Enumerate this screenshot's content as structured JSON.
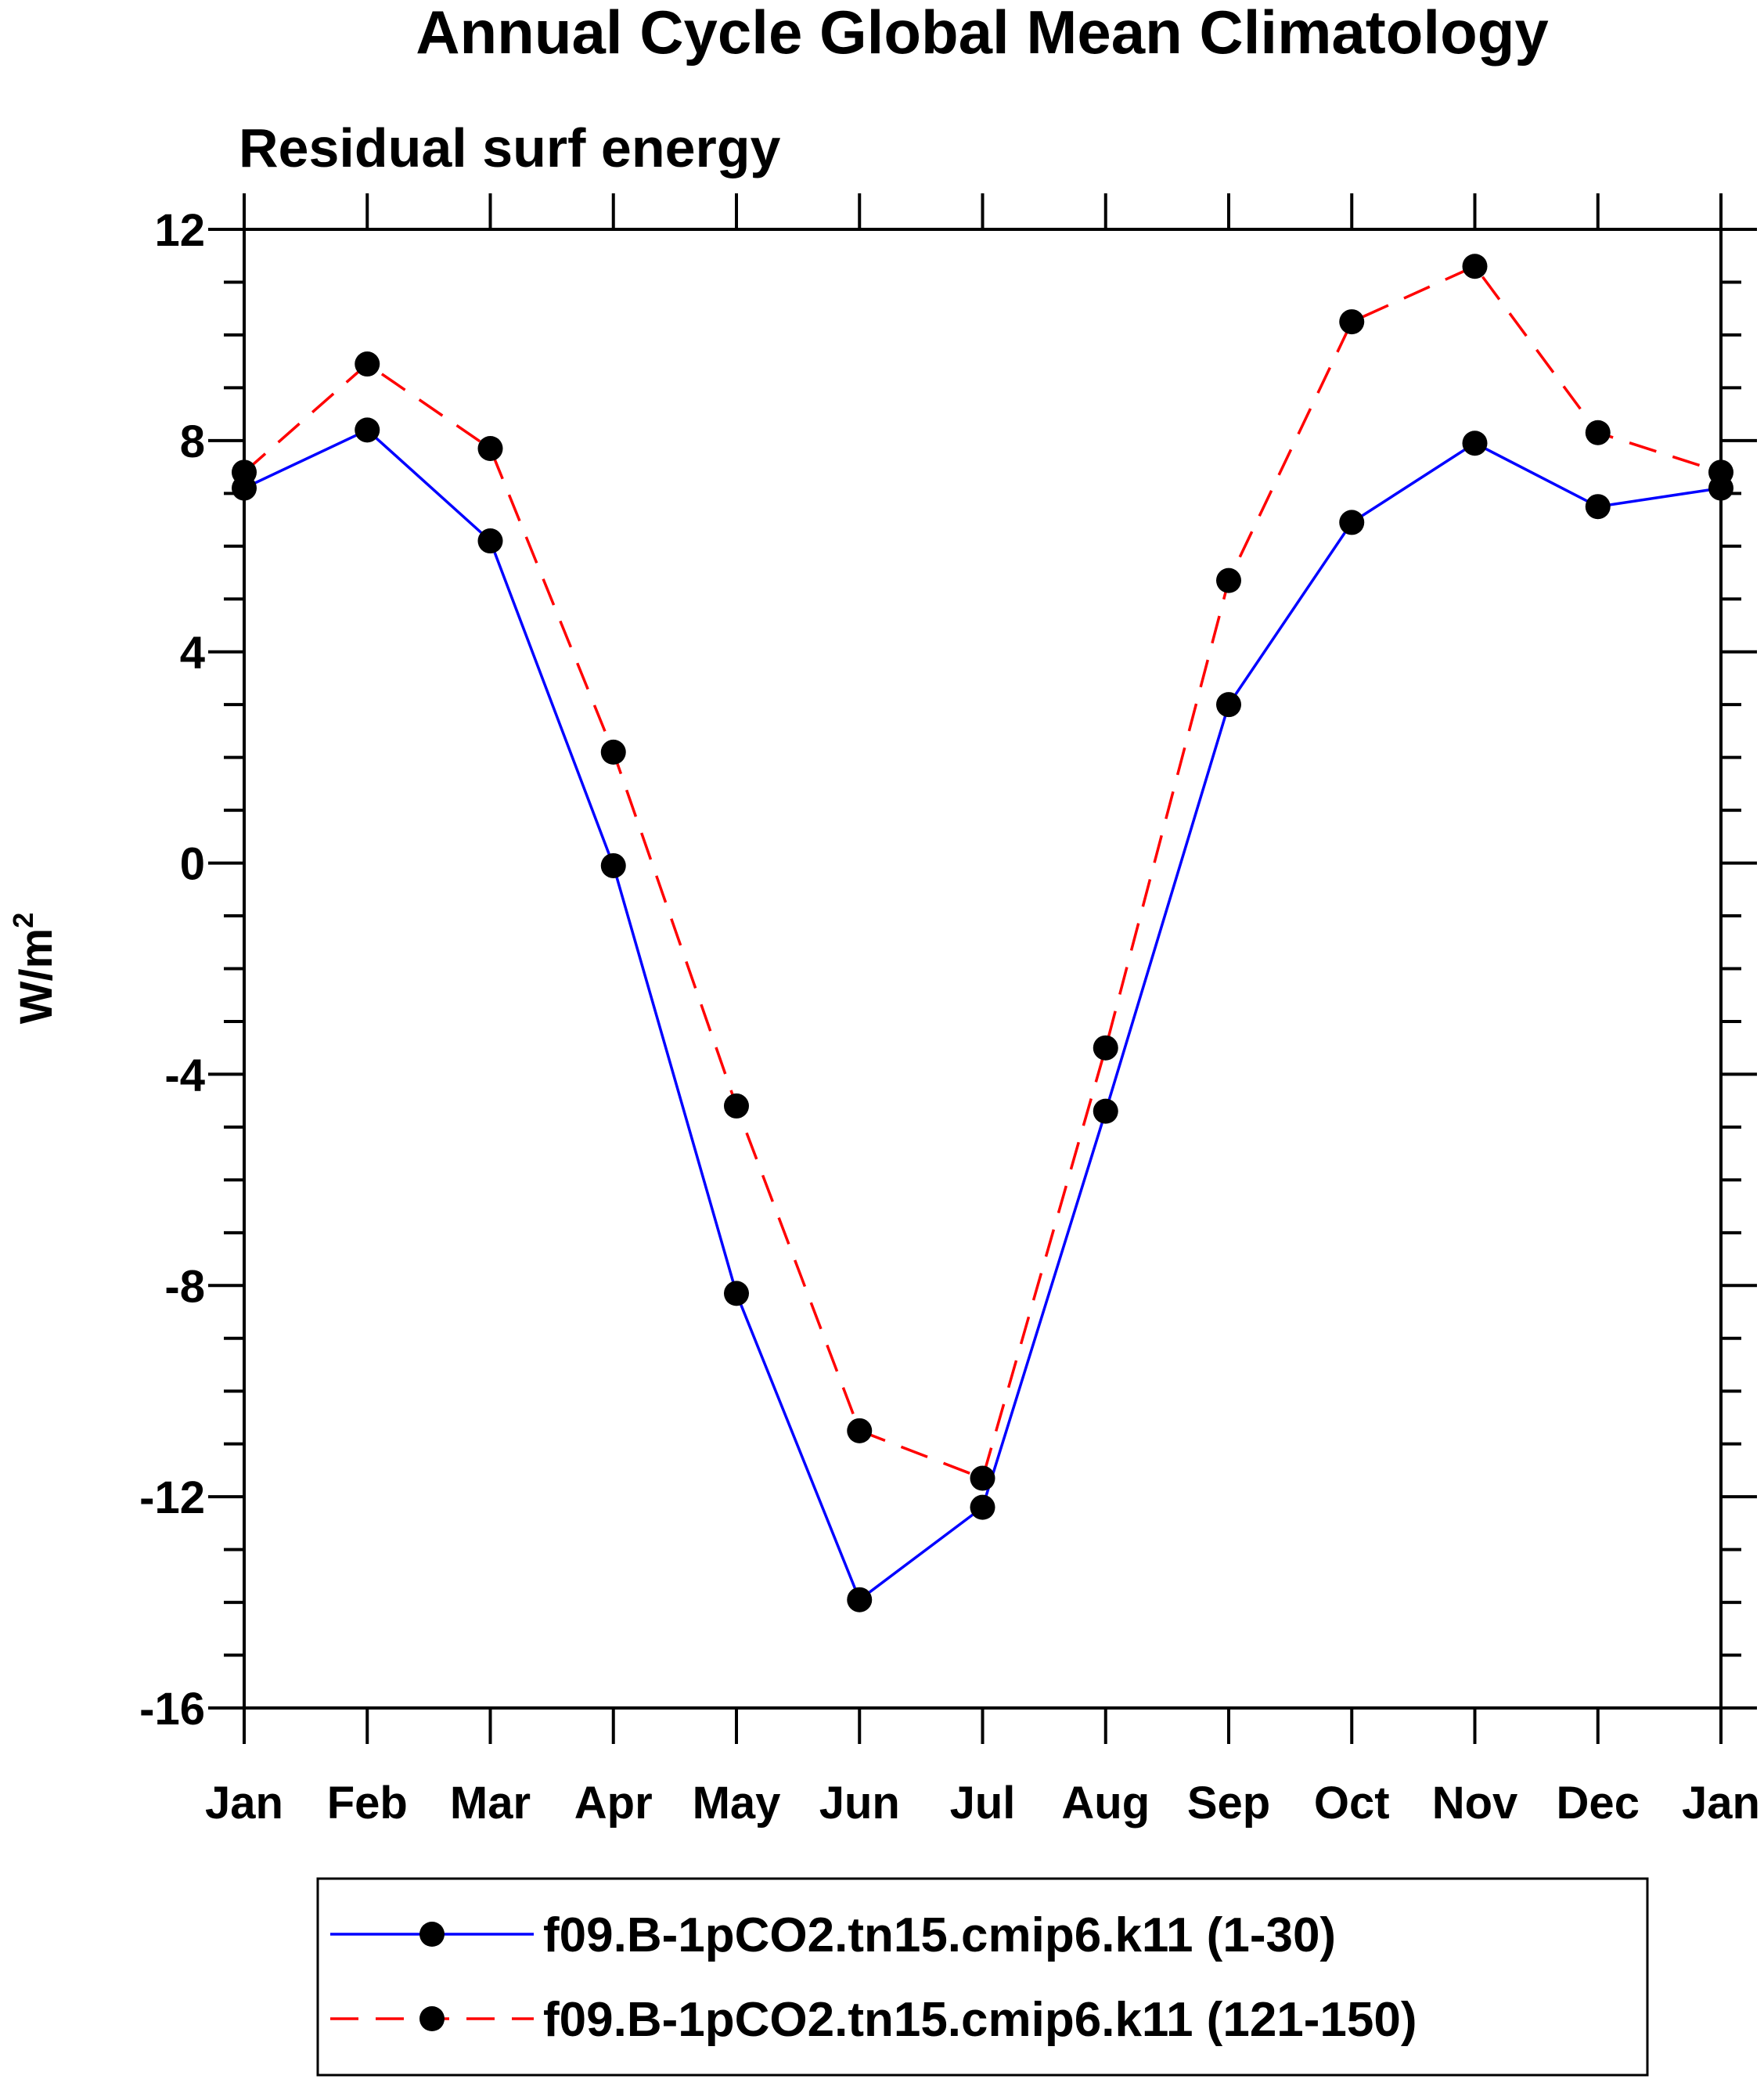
{
  "chart_data": {
    "type": "line",
    "title": "Annual Cycle Global Mean Climatology",
    "subtitle": "Residual surf energy",
    "ylabel_base": "W/m",
    "ylabel_sup": "2",
    "xlabel": "",
    "categories": [
      "Jan",
      "Feb",
      "Mar",
      "Apr",
      "May",
      "Jun",
      "Jul",
      "Aug",
      "Sep",
      "Oct",
      "Nov",
      "Dec",
      "Jan"
    ],
    "ylim": [
      -16,
      12
    ],
    "yticks": [
      12,
      8,
      4,
      0,
      -4,
      -8,
      -12,
      -16
    ],
    "ytick_labels": [
      "12",
      "8",
      "4",
      "0",
      "-4",
      "-8",
      "-12",
      "-16"
    ],
    "grid": false,
    "legend_position": "bottom",
    "series": [
      {
        "name": "f09.B-1pCO2.tn15.cmip6.k11 (1-30)",
        "color": "#0000ff",
        "dash": "solid",
        "marker": "filled-circle",
        "values": [
          7.1,
          8.2,
          6.1,
          -0.05,
          -8.15,
          -13.95,
          -12.2,
          -4.7,
          3.0,
          6.45,
          7.95,
          6.75,
          7.1
        ]
      },
      {
        "name": "f09.B-1pCO2.tn15.cmip6.k11 (121-150)",
        "color": "#ff0000",
        "dash": "dashed",
        "marker": "filled-circle",
        "values": [
          7.4,
          9.45,
          7.85,
          2.1,
          -4.6,
          -10.75,
          -11.65,
          -3.5,
          5.35,
          10.25,
          11.3,
          8.15,
          7.4
        ]
      }
    ]
  }
}
